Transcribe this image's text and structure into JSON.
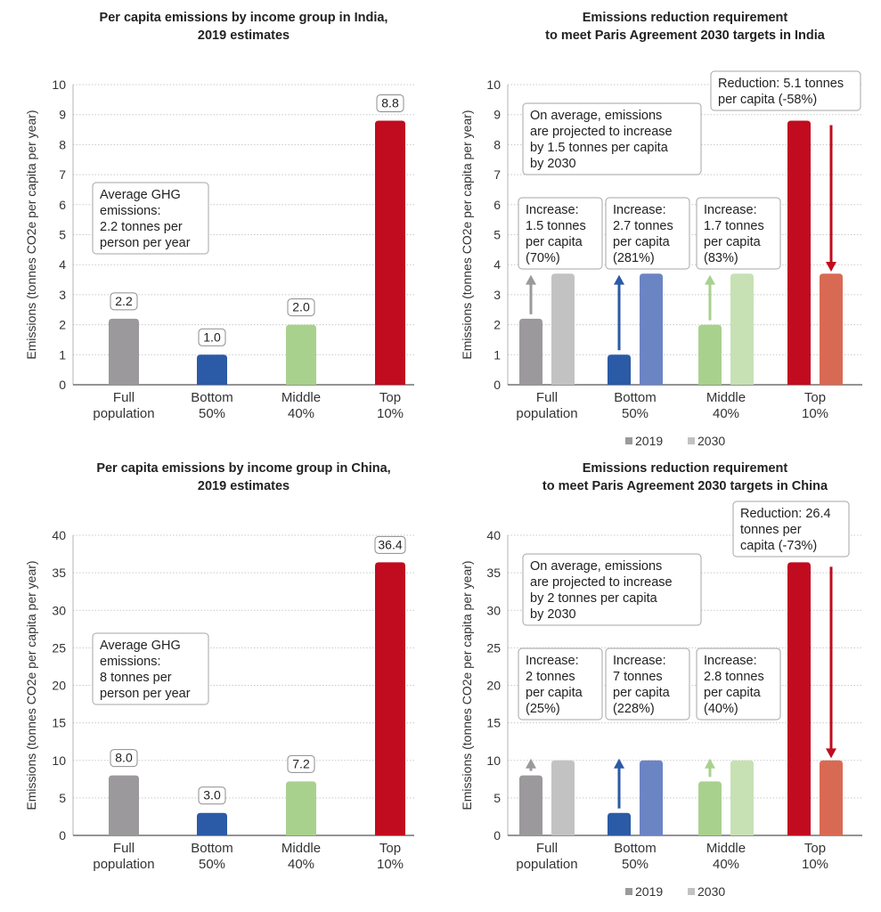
{
  "chart_data": [
    {
      "id": "india_2019",
      "type": "bar",
      "title": [
        "Per capita emissions by income group in India,",
        "2019 estimates"
      ],
      "ylabel": "Emissions (tonnes CO2e per capita per year)",
      "ylim": [
        0,
        10
      ],
      "yticks": [
        0,
        1,
        2,
        3,
        4,
        5,
        6,
        7,
        8,
        9,
        10
      ],
      "grid": true,
      "categories": [
        [
          "Full",
          "population"
        ],
        [
          "Bottom",
          "50%"
        ],
        [
          "Middle",
          "40%"
        ],
        [
          "Top",
          "10%"
        ]
      ],
      "values": [
        2.2,
        1.0,
        2.0,
        8.8
      ],
      "data_labels": [
        "2.2",
        "1.0",
        "2.0",
        "8.8"
      ],
      "bar_colors": [
        "#9b999b",
        "#2b5aa6",
        "#a9d18e",
        "#c10b1f"
      ],
      "annotation": [
        "Average GHG",
        "emissions:",
        "2.2 tonnes per",
        "person per year"
      ],
      "annotation_anchor": {
        "x": 0.5,
        "y": 6.6
      }
    },
    {
      "id": "india_2030",
      "type": "bar",
      "title": [
        "Emissions reduction requirement",
        "to meet Paris Agreement 2030 targets in India"
      ],
      "ylabel": "Emissions (tonnes CO2e per capita per year)",
      "ylim": [
        0,
        10
      ],
      "yticks": [
        0,
        1,
        2,
        3,
        4,
        5,
        6,
        7,
        8,
        9,
        10
      ],
      "grid": true,
      "categories": [
        [
          "Full",
          "population"
        ],
        [
          "Bottom",
          "50%"
        ],
        [
          "Middle",
          "40%"
        ],
        [
          "Top",
          "10%"
        ]
      ],
      "series": [
        {
          "name": "2019",
          "values": [
            2.2,
            1.0,
            2.0,
            8.8
          ],
          "colors": [
            "#9b999b",
            "#2b5aa6",
            "#a9d18e",
            "#c10b1f"
          ]
        },
        {
          "name": "2030",
          "values": [
            3.7,
            3.7,
            3.7,
            3.7
          ],
          "colors": [
            "#c3c2c3",
            "#6b84c4",
            "#c7e1b4",
            "#d86a54"
          ]
        }
      ],
      "arrows": [
        {
          "from": 2.2,
          "to": 3.6,
          "color": "#9b999b",
          "direction": "up"
        },
        {
          "from": 1.0,
          "to": 3.6,
          "color": "#2b5aa6",
          "direction": "up"
        },
        {
          "from": 2.0,
          "to": 3.6,
          "color": "#a9d18e",
          "direction": "up"
        },
        {
          "from": 8.8,
          "to": 3.8,
          "color": "#c10b1f",
          "direction": "down"
        }
      ],
      "increase_notes": [
        [
          "Increase:",
          "1.5 tonnes",
          "per capita",
          "(70%)"
        ],
        [
          "Increase:",
          "2.7 tonnes",
          "per capita",
          "(281%)"
        ],
        [
          "Increase:",
          "1.7 tonnes",
          "per capita",
          "(83%)"
        ]
      ],
      "reduction_note": [
        "Reduction: 5.1 tonnes",
        "per capita (-58%)"
      ],
      "average_note": [
        "On average, emissions",
        "are projected to increase",
        "by 1.5 tonnes per capita",
        "by 2030"
      ],
      "legend": [
        "2019",
        "2030"
      ],
      "legend_colors": [
        "#9b999b",
        "#c3c2c3"
      ],
      "legend_position": "bottom"
    },
    {
      "id": "china_2019",
      "type": "bar",
      "title": [
        "Per capita emissions by income group in China,",
        "2019 estimates"
      ],
      "ylabel": "Emissions (tonnes CO2e per capita per year)",
      "ylim": [
        0,
        40
      ],
      "yticks": [
        0,
        5,
        10,
        15,
        20,
        25,
        30,
        35,
        40
      ],
      "grid": true,
      "categories": [
        [
          "Full",
          "population"
        ],
        [
          "Bottom",
          "50%"
        ],
        [
          "Middle",
          "40%"
        ],
        [
          "Top",
          "10%"
        ]
      ],
      "values": [
        8.0,
        3.0,
        7.2,
        36.4
      ],
      "data_labels": [
        "8.0",
        "3.0",
        "7.2",
        "36.4"
      ],
      "bar_colors": [
        "#9b999b",
        "#2b5aa6",
        "#a9d18e",
        "#c10b1f"
      ],
      "annotation": [
        "Average GHG",
        "emissions:",
        "8 tonnes per",
        "person per year"
      ],
      "annotation_anchor": {
        "x": 0.5,
        "y": 26.4
      }
    },
    {
      "id": "china_2030",
      "type": "bar",
      "title": [
        "Emissions reduction requirement",
        "to meet Paris Agreement 2030 targets in China"
      ],
      "ylabel": "Emissions (tonnes CO2e per capita per year)",
      "ylim": [
        0,
        40
      ],
      "yticks": [
        0,
        5,
        10,
        15,
        20,
        25,
        30,
        35,
        40
      ],
      "grid": true,
      "categories": [
        [
          "Full",
          "population"
        ],
        [
          "Bottom",
          "50%"
        ],
        [
          "Middle",
          "40%"
        ],
        [
          "Top",
          "10%"
        ]
      ],
      "series": [
        {
          "name": "2019",
          "values": [
            8.0,
            3.0,
            7.2,
            36.4
          ],
          "colors": [
            "#9b999b",
            "#2b5aa6",
            "#a9d18e",
            "#c10b1f"
          ]
        },
        {
          "name": "2030",
          "values": [
            10.0,
            10.0,
            10.0,
            10.0
          ],
          "colors": [
            "#c3c2c3",
            "#6b84c4",
            "#c7e1b4",
            "#d86a54"
          ]
        }
      ],
      "arrows": [
        {
          "from": 8.0,
          "to": 10.0,
          "color": "#9b999b",
          "direction": "up"
        },
        {
          "from": 3.0,
          "to": 10.0,
          "color": "#2b5aa6",
          "direction": "up"
        },
        {
          "from": 7.2,
          "to": 10.0,
          "color": "#a9d18e",
          "direction": "up"
        },
        {
          "from": 36.4,
          "to": 10.4,
          "color": "#c10b1f",
          "direction": "down"
        }
      ],
      "increase_notes": [
        [
          "Increase:",
          "2 tonnes",
          "per capita",
          "(25%)"
        ],
        [
          "Increase:",
          "7 tonnes",
          "per capita",
          "(228%)"
        ],
        [
          "Increase:",
          "2.8 tonnes",
          "per capita",
          "(40%)"
        ]
      ],
      "reduction_note": [
        "Reduction: 26.4",
        "tonnes per",
        "capita (-73%)"
      ],
      "average_note": [
        "On average, emissions",
        "are projected to increase",
        "by 2 tonnes per capita",
        "by 2030"
      ],
      "legend": [
        "2019",
        "2030"
      ],
      "legend_colors": [
        "#9b999b",
        "#c3c2c3"
      ],
      "legend_position": "bottom"
    }
  ]
}
